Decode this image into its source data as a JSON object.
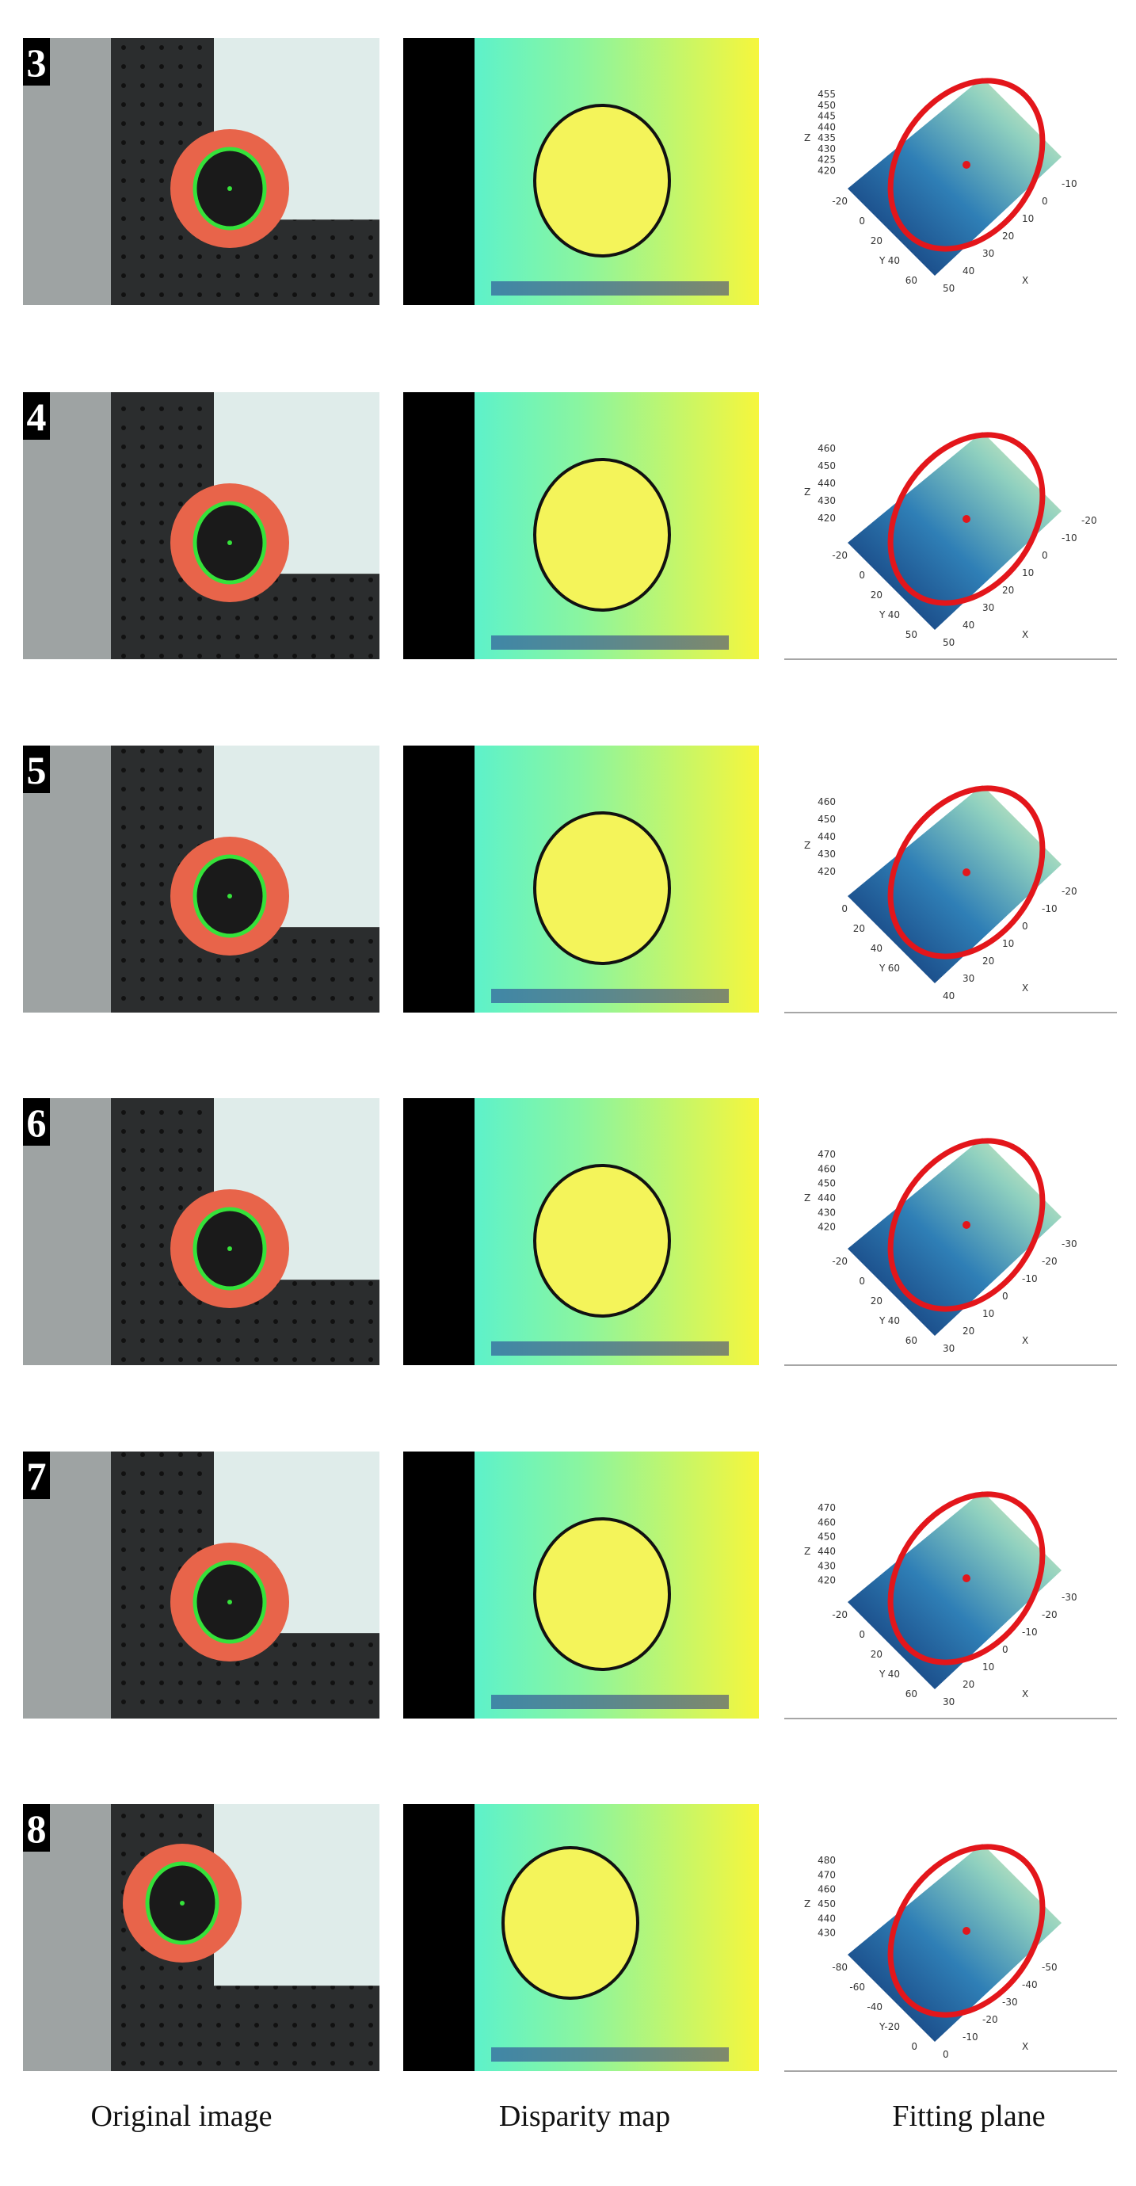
{
  "rows": [
    {
      "label": "3",
      "plot": {
        "z_label": "Z",
        "z_ticks": [
          "455",
          "450",
          "445",
          "440",
          "435",
          "430",
          "425",
          "420"
        ],
        "y_label": "Y",
        "y_ticks": [
          "-20",
          "0",
          "20",
          "40",
          "60"
        ],
        "x_label": "X",
        "x_ticks": [
          "50",
          "40",
          "30",
          "20",
          "10",
          "0",
          "-10"
        ]
      }
    },
    {
      "label": "4",
      "plot": {
        "z_label": "Z",
        "z_ticks": [
          "460",
          "450",
          "440",
          "430",
          "420"
        ],
        "y_label": "Y",
        "y_ticks": [
          "-20",
          "0",
          "20",
          "40",
          "50"
        ],
        "x_label": "X",
        "x_ticks": [
          "50",
          "40",
          "30",
          "20",
          "10",
          "0",
          "-10",
          "-20"
        ]
      }
    },
    {
      "label": "5",
      "plot": {
        "z_label": "Z",
        "z_ticks": [
          "460",
          "450",
          "440",
          "430",
          "420"
        ],
        "y_label": "Y",
        "y_ticks": [
          "0",
          "20",
          "40",
          "60"
        ],
        "x_label": "X",
        "x_ticks": [
          "40",
          "30",
          "20",
          "10",
          "0",
          "-10",
          "-20"
        ]
      }
    },
    {
      "label": "6",
      "plot": {
        "z_label": "Z",
        "z_ticks": [
          "470",
          "460",
          "450",
          "440",
          "430",
          "420"
        ],
        "y_label": "Y",
        "y_ticks": [
          "-20",
          "0",
          "20",
          "40",
          "60"
        ],
        "x_label": "X",
        "x_ticks": [
          "30",
          "20",
          "10",
          "0",
          "-10",
          "-20",
          "-30"
        ]
      }
    },
    {
      "label": "7",
      "plot": {
        "z_label": "Z",
        "z_ticks": [
          "470",
          "460",
          "450",
          "440",
          "430",
          "420"
        ],
        "y_label": "Y",
        "y_ticks": [
          "-20",
          "0",
          "20",
          "40",
          "60"
        ],
        "x_label": "X",
        "x_ticks": [
          "30",
          "20",
          "10",
          "0",
          "-10",
          "-20",
          "-30"
        ]
      }
    },
    {
      "label": "8",
      "plot": {
        "z_label": "Z",
        "z_ticks": [
          "480",
          "470",
          "460",
          "450",
          "440",
          "430"
        ],
        "y_label": "Y",
        "y_ticks": [
          "-80",
          "-60",
          "-40",
          "-20",
          "0"
        ],
        "x_label": "X",
        "x_ticks": [
          "0",
          "-10",
          "-20",
          "-30",
          "-40",
          "-50"
        ]
      }
    }
  ],
  "captions": [
    "Original image",
    "Disparity map",
    "Fitting plane"
  ]
}
